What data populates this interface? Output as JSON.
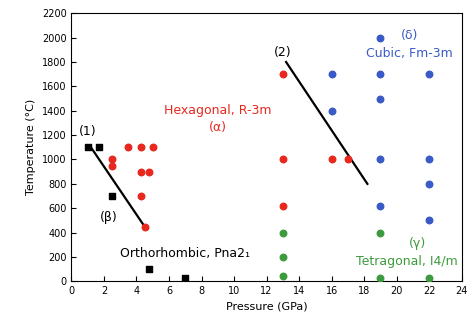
{
  "chart_data": {
    "type": "scatter",
    "x_label": "Pressure (GPa)",
    "y_label": "Temperature (°C)",
    "xlim": [
      0,
      24
    ],
    "xticks": [
      0,
      2,
      4,
      6,
      8,
      10,
      12,
      14,
      16,
      18,
      20,
      22,
      24
    ],
    "ylim": [
      0,
      2200
    ],
    "yticks": [
      0,
      200,
      400,
      600,
      800,
      1000,
      1200,
      1400,
      1600,
      1800,
      2000,
      2200
    ],
    "grid": false,
    "series": [
      {
        "type": "scatter",
        "color": "#000000",
        "marker": "square",
        "x": [
          1.0,
          1.7,
          2.5,
          4.8,
          7.0
        ],
        "values": [
          1100,
          1100,
          700,
          100,
          30
        ]
      },
      {
        "type": "scatter",
        "color": "#e8281f",
        "marker": "circle",
        "x": [
          2.5,
          2.5,
          3.5,
          4.3,
          4.3,
          4.3,
          4.5,
          4.8,
          5.0,
          13,
          13,
          13,
          16,
          17
        ],
        "values": [
          1000,
          950,
          1100,
          1100,
          900,
          700,
          450,
          900,
          1100,
          1700,
          1000,
          620,
          1000,
          1000
        ]
      },
      {
        "type": "scatter",
        "color": "#3a5bc7",
        "marker": "circle",
        "x": [
          16,
          16,
          19,
          19,
          19,
          19,
          19,
          22,
          22,
          22,
          22
        ],
        "values": [
          1700,
          1400,
          2000,
          1700,
          1500,
          1000,
          620,
          1700,
          1000,
          800,
          500
        ]
      },
      {
        "type": "scatter",
        "color": "#3d9a3d",
        "marker": "circle",
        "x": [
          13,
          13,
          13,
          19,
          19,
          22
        ],
        "values": [
          400,
          200,
          40,
          400,
          30,
          30
        ]
      },
      {
        "type": "line",
        "color": "#000000",
        "line_style": "solid",
        "x": [
          1.2,
          4.5
        ],
        "values": [
          1100,
          450
        ]
      },
      {
        "type": "line",
        "color": "#000000",
        "line_style": "solid",
        "x": [
          13.2,
          18.2
        ],
        "values": [
          1800,
          800
        ]
      }
    ],
    "annotations": [
      {
        "text": "(1)",
        "x": 1.0,
        "y": 1230,
        "color": "#000000"
      },
      {
        "text": "(2)",
        "x": 13.0,
        "y": 1880,
        "color": "#000000"
      },
      {
        "text": "(β)",
        "x": 2.3,
        "y": 520,
        "color": "#000000"
      },
      {
        "text": "Orthorhombic, Pna2₁",
        "x": 7.0,
        "y": 230,
        "color": "#000000"
      },
      {
        "text": "Hexagonal, R-3m",
        "x": 9.0,
        "y": 1400,
        "color": "#e8281f"
      },
      {
        "text": "(α)",
        "x": 9.0,
        "y": 1260,
        "color": "#e8281f"
      },
      {
        "text": "(δ)",
        "x": 20.8,
        "y": 2020,
        "color": "#3a5bc7"
      },
      {
        "text": "Cubic, Fm-3m",
        "x": 20.8,
        "y": 1870,
        "color": "#3a5bc7"
      },
      {
        "text": "(γ)",
        "x": 21.3,
        "y": 310,
        "color": "#3d9a3d"
      },
      {
        "text": "Tetragonal, I4/m",
        "x": 20.6,
        "y": 160,
        "color": "#3d9a3d"
      }
    ]
  }
}
